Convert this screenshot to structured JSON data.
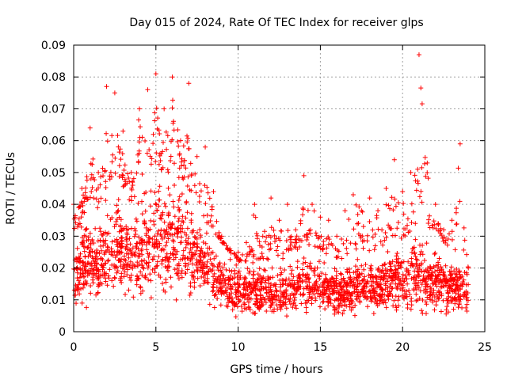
{
  "chart_data": {
    "type": "scatter",
    "title": "Day 015 of 2024, Rate Of TEC Index for receiver glps",
    "xlabel": "GPS time / hours",
    "ylabel": "ROTI / TECUs",
    "xlim": [
      0,
      25
    ],
    "ylim": [
      0,
      0.09
    ],
    "xticks": [
      0,
      5,
      10,
      15,
      20,
      25
    ],
    "xtick_labels": [
      "0",
      "5",
      "10",
      "15",
      "20",
      "25"
    ],
    "yticks": [
      0,
      0.01,
      0.02,
      0.03,
      0.04,
      0.05,
      0.06,
      0.07,
      0.08,
      0.09
    ],
    "ytick_labels": [
      "0",
      "0.01",
      "0.02",
      "0.03",
      "0.04",
      "0.05",
      "0.06",
      "0.07",
      "0.08",
      "0.09"
    ],
    "grid": true,
    "marker": "plus",
    "color": "#ff0000",
    "series": [
      {
        "name": "ROTI",
        "description": "envelope of dense scatter: x = hour, ymin/ymax = typical band, ypeak = max outlier",
        "x": [
          0,
          0.5,
          1,
          1.5,
          2,
          2.5,
          3,
          3.5,
          4,
          4.5,
          5,
          5.5,
          6,
          6.5,
          7,
          7.5,
          8,
          8.5,
          9,
          9.5,
          10,
          10.5,
          11,
          11.5,
          12,
          12.5,
          13,
          13.5,
          14,
          14.5,
          15,
          15.5,
          16,
          16.5,
          17,
          17.5,
          18,
          18.5,
          19,
          19.5,
          20,
          20.5,
          21,
          21.5,
          22,
          22.5,
          23,
          23.5,
          24
        ],
        "ymin": [
          0.005,
          0.005,
          0.006,
          0.007,
          0.008,
          0.008,
          0.008,
          0.008,
          0.008,
          0.008,
          0.009,
          0.008,
          0.008,
          0.008,
          0.008,
          0.008,
          0.007,
          0.006,
          0.005,
          0.004,
          0.004,
          0.004,
          0.004,
          0.004,
          0.003,
          0.003,
          0.004,
          0.004,
          0.004,
          0.004,
          0.004,
          0.004,
          0.004,
          0.004,
          0.004,
          0.004,
          0.004,
          0.004,
          0.004,
          0.004,
          0.004,
          0.004,
          0.004,
          0.004,
          0.004,
          0.004,
          0.004,
          0.004,
          0.004
        ],
        "ymax": [
          0.03,
          0.035,
          0.042,
          0.038,
          0.045,
          0.05,
          0.045,
          0.04,
          0.045,
          0.05,
          0.052,
          0.05,
          0.05,
          0.048,
          0.045,
          0.04,
          0.035,
          0.03,
          0.028,
          0.025,
          0.022,
          0.022,
          0.023,
          0.022,
          0.022,
          0.022,
          0.024,
          0.025,
          0.028,
          0.025,
          0.024,
          0.024,
          0.022,
          0.023,
          0.025,
          0.026,
          0.025,
          0.026,
          0.028,
          0.03,
          0.028,
          0.03,
          0.034,
          0.032,
          0.03,
          0.028,
          0.026,
          0.025,
          0.02
        ],
        "ypeak": [
          0.04,
          0.045,
          0.064,
          0.05,
          0.077,
          0.075,
          0.063,
          0.05,
          0.07,
          0.076,
          0.081,
          0.07,
          0.08,
          0.06,
          0.078,
          0.055,
          0.058,
          0.044,
          0.03,
          0.026,
          0.025,
          0.028,
          0.04,
          0.03,
          0.042,
          0.035,
          0.04,
          0.032,
          0.049,
          0.04,
          0.036,
          0.035,
          0.03,
          0.038,
          0.043,
          0.038,
          0.042,
          0.038,
          0.045,
          0.054,
          0.044,
          0.05,
          0.087,
          0.053,
          0.04,
          0.032,
          0.035,
          0.059,
          0.02
        ]
      }
    ]
  }
}
